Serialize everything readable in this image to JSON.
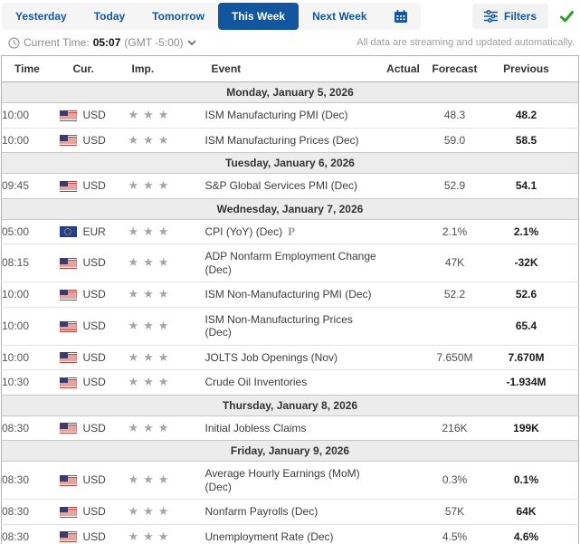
{
  "nav": {
    "tabs": [
      {
        "label": "Yesterday",
        "active": false
      },
      {
        "label": "Today",
        "active": false
      },
      {
        "label": "Tomorrow",
        "active": false
      },
      {
        "label": "This Week",
        "active": true
      },
      {
        "label": "Next Week",
        "active": false
      }
    ],
    "calendar_icon": "calendar-icon",
    "filters_label": "Filters",
    "filters_icon": "sliders-icon",
    "streaming_ok_icon": "check-icon"
  },
  "status_bar": {
    "clock_icon": "clock-icon",
    "current_time_label": "Current Time:",
    "current_time_value": "05:07",
    "timezone": "(GMT -5:00)",
    "chevron_icon": "chevron-down-icon",
    "streaming_note": "All data are streaming and updated automatically."
  },
  "table": {
    "columns": [
      "Time",
      "Cur.",
      "Imp.",
      "Event",
      "Actual",
      "Forecast",
      "Previous"
    ],
    "sections": [
      {
        "date_label": "Monday, January 5, 2026",
        "rows": [
          {
            "time": "10:00",
            "currency": "USD",
            "flag": "us",
            "stars": 3,
            "event": "ISM Manufacturing PMI (Dec)",
            "marker": "",
            "actual": "",
            "forecast": "48.3",
            "previous": "48.2"
          },
          {
            "time": "10:00",
            "currency": "USD",
            "flag": "us",
            "stars": 3,
            "event": "ISM Manufacturing Prices (Dec)",
            "marker": "",
            "actual": "",
            "forecast": "59.0",
            "previous": "58.5"
          }
        ]
      },
      {
        "date_label": "Tuesday, January 6, 2026",
        "rows": [
          {
            "time": "09:45",
            "currency": "USD",
            "flag": "us",
            "stars": 3,
            "event": "S&P Global Services PMI (Dec)",
            "marker": "",
            "actual": "",
            "forecast": "52.9",
            "previous": "54.1"
          }
        ]
      },
      {
        "date_label": "Wednesday, January 7, 2026",
        "rows": [
          {
            "time": "05:00",
            "currency": "EUR",
            "flag": "eu",
            "stars": 3,
            "event": "CPI (YoY) (Dec)",
            "marker": "P",
            "actual": "",
            "forecast": "2.1%",
            "previous": "2.1%"
          },
          {
            "time": "08:15",
            "currency": "USD",
            "flag": "us",
            "stars": 3,
            "event": "ADP Nonfarm Employment Change (Dec)",
            "marker": "",
            "actual": "",
            "forecast": "47K",
            "previous": "-32K"
          },
          {
            "time": "10:00",
            "currency": "USD",
            "flag": "us",
            "stars": 3,
            "event": "ISM Non-Manufacturing PMI (Dec)",
            "marker": "",
            "actual": "",
            "forecast": "52.2",
            "previous": "52.6"
          },
          {
            "time": "10:00",
            "currency": "USD",
            "flag": "us",
            "stars": 3,
            "event": "ISM Non-Manufacturing Prices (Dec)",
            "marker": "",
            "actual": "",
            "forecast": "",
            "previous": "65.4"
          },
          {
            "time": "10:00",
            "currency": "USD",
            "flag": "us",
            "stars": 3,
            "event": "JOLTS Job Openings (Nov)",
            "marker": "",
            "actual": "",
            "forecast": "7.650M",
            "previous": "7.670M"
          },
          {
            "time": "10:30",
            "currency": "USD",
            "flag": "us",
            "stars": 3,
            "event": "Crude Oil Inventories",
            "marker": "",
            "actual": "",
            "forecast": "",
            "previous": "-1.934M"
          }
        ]
      },
      {
        "date_label": "Thursday, January 8, 2026",
        "rows": [
          {
            "time": "08:30",
            "currency": "USD",
            "flag": "us",
            "stars": 3,
            "event": "Initial Jobless Claims",
            "marker": "",
            "actual": "",
            "forecast": "216K",
            "previous": "199K"
          }
        ]
      },
      {
        "date_label": "Friday, January 9, 2026",
        "rows": [
          {
            "time": "08:30",
            "currency": "USD",
            "flag": "us",
            "stars": 3,
            "event": "Average Hourly Earnings (MoM) (Dec)",
            "marker": "",
            "actual": "",
            "forecast": "0.3%",
            "previous": "0.1%"
          },
          {
            "time": "08:30",
            "currency": "USD",
            "flag": "us",
            "stars": 3,
            "event": "Nonfarm Payrolls (Dec)",
            "marker": "",
            "actual": "",
            "forecast": "57K",
            "previous": "64K"
          },
          {
            "time": "08:30",
            "currency": "USD",
            "flag": "us",
            "stars": 3,
            "event": "Unemployment Rate (Dec)",
            "marker": "",
            "actual": "",
            "forecast": "4.5%",
            "previous": "4.6%"
          }
        ]
      }
    ]
  },
  "colors": {
    "accent_blue": "#12579e",
    "status_green": "#2ca02c",
    "star_gray": "#a6a6a6",
    "day_row_bg": "#ececec"
  }
}
